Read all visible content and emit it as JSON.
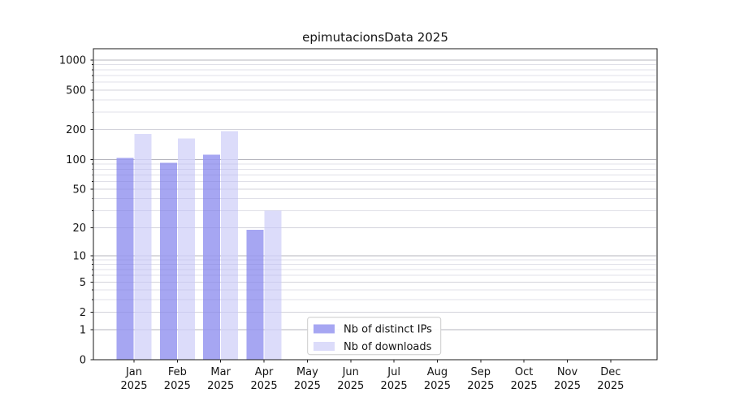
{
  "page": {
    "background": "#ffffff"
  },
  "chart_data": {
    "type": "bar",
    "title": "epimutacionsData 2025",
    "year": "2025",
    "categories": [
      "Jan 2025",
      "Feb 2025",
      "Mar 2025",
      "Apr 2025",
      "May 2025",
      "Jun 2025",
      "Jul 2025",
      "Aug 2025",
      "Sep 2025",
      "Oct 2025",
      "Nov 2025",
      "Dec 2025"
    ],
    "month_labels": [
      "Jan",
      "Feb",
      "Mar",
      "Apr",
      "May",
      "Jun",
      "Jul",
      "Aug",
      "Sep",
      "Oct",
      "Nov",
      "Dec"
    ],
    "series": [
      {
        "name": "Nb of distinct IPs",
        "color": "#a6a6f2",
        "values": [
          104,
          93,
          112,
          19,
          0,
          0,
          0,
          0,
          0,
          0,
          0,
          0
        ]
      },
      {
        "name": "Nb of downloads",
        "color": "#dcdcfa",
        "values": [
          181,
          163,
          193,
          30,
          0,
          0,
          0,
          0,
          0,
          0,
          0,
          0
        ]
      }
    ],
    "y_scale": "log1p",
    "y_ticks": [
      0,
      1,
      2,
      5,
      10,
      20,
      50,
      100,
      200,
      500,
      1000
    ],
    "y_minor_ticks": [
      3,
      4,
      6,
      7,
      8,
      9,
      30,
      40,
      60,
      70,
      80,
      90,
      300,
      400,
      600,
      700,
      800,
      900
    ],
    "ylim": [
      0,
      1300
    ],
    "xlabel": "",
    "ylabel": "",
    "grid": "horizontal",
    "legend_position": "bottom-center",
    "colors": {
      "frame": "#1a1a1a",
      "tick": "#1a1a1a",
      "grid_decade": "#c3c3c3",
      "grid_labeled": "#e4e4e4",
      "grid_minor": "#f2f2f2",
      "legend_border": "#cccccc",
      "legend_background": "#ffffff",
      "text": "#141414"
    }
  }
}
